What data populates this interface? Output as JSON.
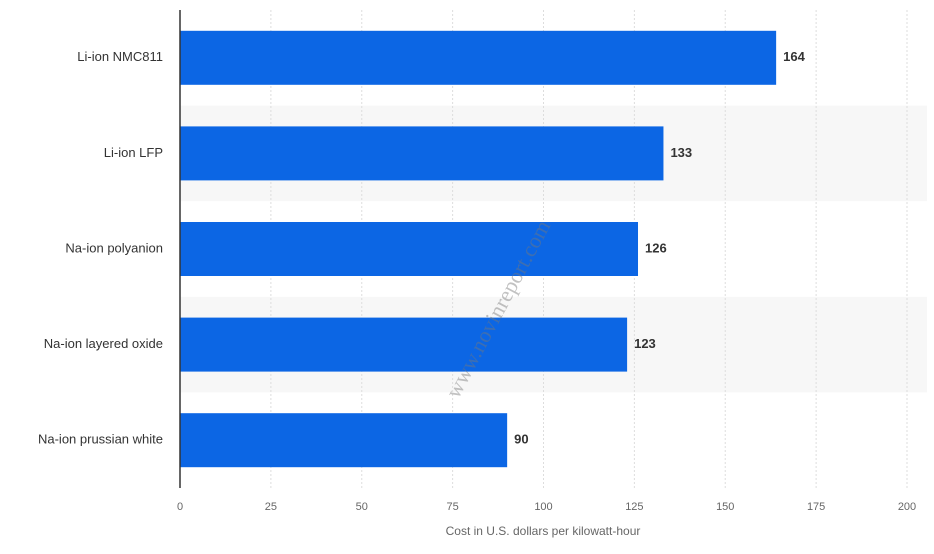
{
  "chart_data": {
    "type": "bar",
    "orientation": "horizontal",
    "categories": [
      "Li-ion NMC811",
      "Li-ion LFP",
      "Na-ion polyanion",
      "Na-ion layered oxide",
      "Na-ion prussian white"
    ],
    "values": [
      164,
      133,
      126,
      123,
      90
    ],
    "color": "#0c66e4",
    "xlim": [
      0,
      200
    ],
    "xticks": [
      0,
      25,
      50,
      75,
      100,
      125,
      150,
      175,
      200
    ],
    "xlabel": "Cost in U.S. dollars per kilowatt-hour",
    "grid": true,
    "watermark": "www.novinreport.com"
  }
}
